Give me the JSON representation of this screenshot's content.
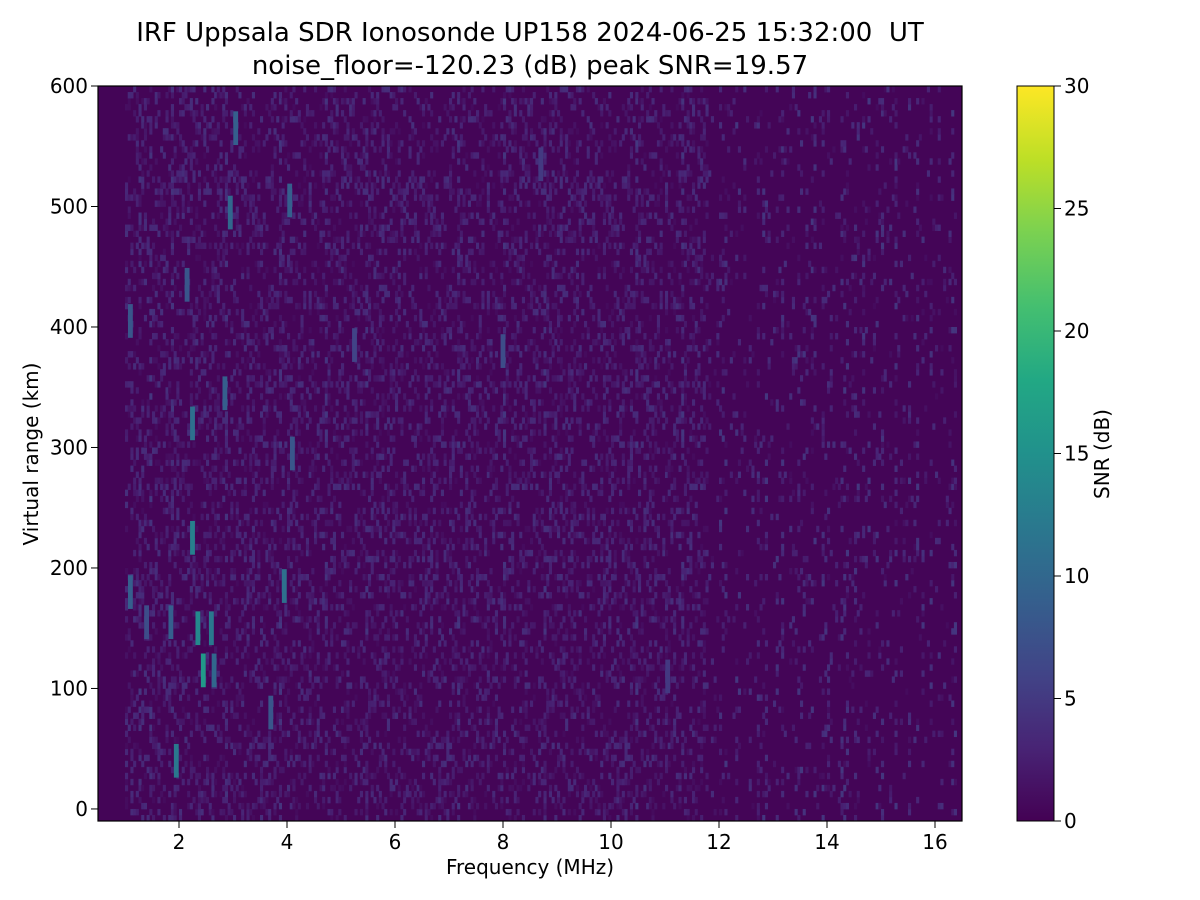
{
  "chart_data": {
    "type": "heatmap",
    "title": "IRF Uppsala SDR Ionosonde UP158 2024-06-25 15:32:00  UT",
    "subtitle": "noise_floor=-120.23 (dB) peak SNR=19.57",
    "xlabel": "Frequency (MHz)",
    "ylabel": "Virtual range (km)",
    "xlim": [
      0.5,
      16.5
    ],
    "ylim": [
      -10,
      600
    ],
    "x_ticks": [
      2,
      4,
      6,
      8,
      10,
      12,
      14,
      16
    ],
    "y_ticks": [
      0,
      100,
      200,
      300,
      400,
      500,
      600
    ],
    "colorbar": {
      "label": "SNR (dB)",
      "range": [
        0,
        30
      ],
      "ticks": [
        0,
        5,
        10,
        15,
        20,
        25,
        30
      ],
      "colormap": "viridis"
    },
    "data_extent_mhz": [
      0.5,
      16.4
    ],
    "noise_floor_db": -120.23,
    "peak_snr_db": 19.57,
    "grid": false,
    "notable_echoes": [
      {
        "freq_mhz": 1.1,
        "range_km": 180,
        "snr_db": 9
      },
      {
        "freq_mhz": 1.1,
        "range_km": 405,
        "snr_db": 8
      },
      {
        "freq_mhz": 1.4,
        "range_km": 155,
        "snr_db": 7
      },
      {
        "freq_mhz": 1.85,
        "range_km": 155,
        "snr_db": 9
      },
      {
        "freq_mhz": 1.95,
        "range_km": 40,
        "snr_db": 12
      },
      {
        "freq_mhz": 2.15,
        "range_km": 435,
        "snr_db": 8
      },
      {
        "freq_mhz": 2.25,
        "range_km": 225,
        "snr_db": 13
      },
      {
        "freq_mhz": 2.25,
        "range_km": 320,
        "snr_db": 11
      },
      {
        "freq_mhz": 2.35,
        "range_km": 150,
        "snr_db": 14
      },
      {
        "freq_mhz": 2.45,
        "range_km": 115,
        "snr_db": 16
      },
      {
        "freq_mhz": 2.6,
        "range_km": 150,
        "snr_db": 12
      },
      {
        "freq_mhz": 2.65,
        "range_km": 115,
        "snr_db": 10
      },
      {
        "freq_mhz": 2.85,
        "range_km": 345,
        "snr_db": 9
      },
      {
        "freq_mhz": 2.95,
        "range_km": 495,
        "snr_db": 10
      },
      {
        "freq_mhz": 3.05,
        "range_km": 565,
        "snr_db": 9
      },
      {
        "freq_mhz": 3.7,
        "range_km": 80,
        "snr_db": 8
      },
      {
        "freq_mhz": 3.95,
        "range_km": 185,
        "snr_db": 11
      },
      {
        "freq_mhz": 4.05,
        "range_km": 505,
        "snr_db": 9
      },
      {
        "freq_mhz": 4.1,
        "range_km": 295,
        "snr_db": 8
      },
      {
        "freq_mhz": 5.25,
        "range_km": 385,
        "snr_db": 6
      },
      {
        "freq_mhz": 8.0,
        "range_km": 380,
        "snr_db": 7
      },
      {
        "freq_mhz": 8.7,
        "range_km": 535,
        "snr_db": 5
      },
      {
        "freq_mhz": 11.05,
        "range_km": 110,
        "snr_db": 5
      }
    ]
  }
}
